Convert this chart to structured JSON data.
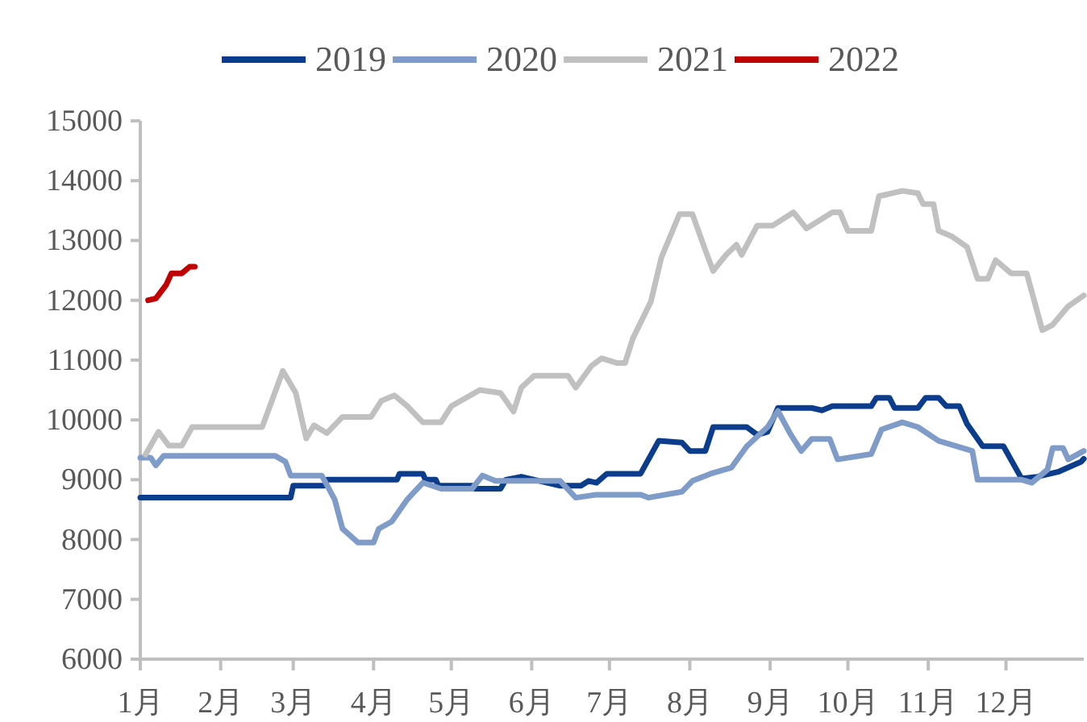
{
  "chart_data": {
    "type": "line",
    "series": [
      {
        "name": "2019",
        "color": "#0b3d8c",
        "x": [
          "--01-01",
          "--02-28",
          "--03-01",
          "--03-13",
          "--03-14",
          "--04-10",
          "--04-11",
          "--04-20",
          "--04-21",
          "--04-25",
          "--04-26",
          "--05-09",
          "--05-10",
          "--05-20",
          "--05-22",
          "--05-28",
          "--06-02",
          "--06-12",
          "--06-20",
          "--06-23",
          "--06-26",
          "--06-30",
          "--07-13",
          "--07-20",
          "--07-29",
          "--08-01",
          "--08-07",
          "--08-10",
          "--08-23",
          "--08-27",
          "--08-31",
          "--09-04",
          "--09-17",
          "--09-21",
          "--09-25",
          "--10-10",
          "--10-12",
          "--10-17",
          "--10-19",
          "--10-28",
          "--10-31",
          "--11-05",
          "--11-08",
          "--11-13",
          "--11-16",
          "--11-22",
          "--11-30",
          "--12-07",
          "--12-13",
          "--12-21",
          "--12-30",
          "--12-31"
        ],
        "values": [
          8700,
          8700,
          8900,
          8900,
          9000,
          9000,
          9100,
          9100,
          9000,
          9000,
          8900,
          8900,
          8850,
          8850,
          9000,
          9050,
          9000,
          8900,
          8900,
          8980,
          8950,
          9100,
          9100,
          9650,
          9620,
          9480,
          9480,
          9880,
          9880,
          9750,
          9800,
          10200,
          10200,
          10160,
          10230,
          10230,
          10370,
          10370,
          10200,
          10200,
          10370,
          10370,
          10230,
          10230,
          9930,
          9560,
          9560,
          9020,
          9050,
          9130,
          9300,
          9350
        ]
      },
      {
        "name": "2020",
        "color": "#7f9cc8",
        "x": [
          "--01-01",
          "--01-05",
          "--01-07",
          "--01-10",
          "--02-22",
          "--02-26",
          "--02-28",
          "--03-12",
          "--03-17",
          "--03-20",
          "--03-26",
          "--04-01",
          "--04-03",
          "--04-08",
          "--04-14",
          "--04-20",
          "--04-27",
          "--05-09",
          "--05-13",
          "--05-18",
          "--06-12",
          "--06-18",
          "--06-26",
          "--07-13",
          "--07-16",
          "--07-29",
          "--08-02",
          "--08-09",
          "--08-17",
          "--08-23",
          "--08-31",
          "--09-04",
          "--09-09",
          "--09-13",
          "--09-17",
          "--09-24",
          "--09-27",
          "--10-10",
          "--10-14",
          "--10-22",
          "--10-28",
          "--11-05",
          "--11-18",
          "--11-20",
          "--12-07",
          "--12-11",
          "--12-17",
          "--12-19",
          "--12-23",
          "--12-25",
          "--12-31"
        ],
        "values": [
          9370,
          9370,
          9240,
          9400,
          9400,
          9300,
          9070,
          9070,
          8670,
          8180,
          7950,
          7950,
          8180,
          8300,
          8670,
          8950,
          8850,
          8850,
          9070,
          8980,
          8980,
          8700,
          8750,
          8750,
          8700,
          8800,
          8980,
          9100,
          9200,
          9560,
          9880,
          10150,
          9750,
          9480,
          9680,
          9680,
          9340,
          9430,
          9840,
          9960,
          9880,
          9650,
          9480,
          9000,
          9000,
          8950,
          9170,
          9530,
          9530,
          9340,
          9480
        ]
      },
      {
        "name": "2021",
        "color": "#c0c0c0",
        "x": [
          "--01-03",
          "--01-08",
          "--01-12",
          "--01-17",
          "--01-21",
          "--02-17",
          "--02-20",
          "--02-25",
          "--03-02",
          "--03-06",
          "--03-09",
          "--03-14",
          "--03-20",
          "--03-31",
          "--04-04",
          "--04-09",
          "--04-14",
          "--04-20",
          "--04-27",
          "--05-01",
          "--05-12",
          "--05-20",
          "--05-25",
          "--05-28",
          "--06-02",
          "--06-15",
          "--06-18",
          "--06-24",
          "--06-28",
          "--07-04",
          "--07-07",
          "--07-10",
          "--07-17",
          "--07-21",
          "--07-28",
          "--08-02",
          "--08-07",
          "--08-10",
          "--08-15",
          "--08-19",
          "--08-21",
          "--08-27",
          "--09-02",
          "--09-10",
          "--09-15",
          "--09-25",
          "--09-28",
          "--10-01",
          "--10-10",
          "--10-13",
          "--10-22",
          "--10-28",
          "--10-30",
          "--11-03",
          "--11-05",
          "--11-10",
          "--11-16",
          "--11-20",
          "--11-24",
          "--11-27",
          "--12-03",
          "--12-09",
          "--12-15",
          "--12-19",
          "--12-25",
          "--12-31"
        ],
        "values": [
          9420,
          9800,
          9570,
          9570,
          9880,
          9880,
          10230,
          10820,
          10450,
          9690,
          9910,
          9780,
          10050,
          10050,
          10320,
          10410,
          10230,
          9960,
          9960,
          10230,
          10500,
          10450,
          10140,
          10540,
          10740,
          10740,
          10540,
          10900,
          11030,
          10950,
          10950,
          11360,
          11980,
          12710,
          13440,
          13440,
          12840,
          12490,
          12760,
          12930,
          12760,
          13250,
          13250,
          13470,
          13200,
          13470,
          13470,
          13160,
          13160,
          13740,
          13830,
          13790,
          13610,
          13610,
          13160,
          13070,
          12890,
          12360,
          12360,
          12670,
          12450,
          12450,
          11500,
          11590,
          11900,
          12080
        ]
      },
      {
        "name": "2022",
        "color": "#c00000",
        "x": [
          "--01-04",
          "--01-07",
          "--01-11",
          "--01-13",
          "--01-17",
          "--01-20",
          "--01-22"
        ],
        "values": [
          12000,
          12030,
          12260,
          12450,
          12450,
          12560,
          12560
        ]
      }
    ],
    "xlim": [
      "--01-01",
      "--12-31"
    ],
    "xticks": [
      {
        "value": "--01-01",
        "label": "1月"
      },
      {
        "value": "--02-01",
        "label": "2月"
      },
      {
        "value": "--03-01",
        "label": "3月"
      },
      {
        "value": "--04-01",
        "label": "4月"
      },
      {
        "value": "--05-01",
        "label": "5月"
      },
      {
        "value": "--06-01",
        "label": "6月"
      },
      {
        "value": "--07-01",
        "label": "7月"
      },
      {
        "value": "--08-01",
        "label": "8月"
      },
      {
        "value": "--09-01",
        "label": "9月"
      },
      {
        "value": "--10-01",
        "label": "10月"
      },
      {
        "value": "--11-01",
        "label": "11月"
      },
      {
        "value": "--12-01",
        "label": "12月"
      }
    ],
    "ylim": [
      6000,
      15000
    ],
    "yticks": [
      6000,
      7000,
      8000,
      9000,
      10000,
      11000,
      12000,
      13000,
      14000,
      15000
    ],
    "legend": "top",
    "grid": false
  }
}
